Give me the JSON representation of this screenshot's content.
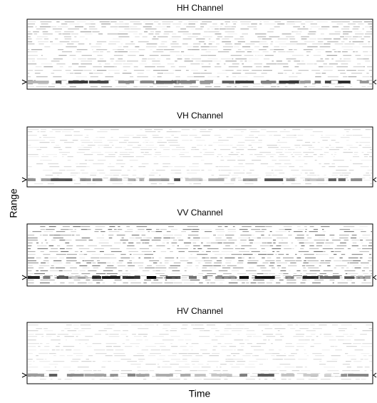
{
  "figure": {
    "xlabel": "Time",
    "ylabel": "Range",
    "panels": [
      {
        "title": "HH Channel"
      },
      {
        "title": "VH Channel"
      },
      {
        "title": "VV Channel"
      },
      {
        "title": "HV Channel"
      }
    ]
  }
}
